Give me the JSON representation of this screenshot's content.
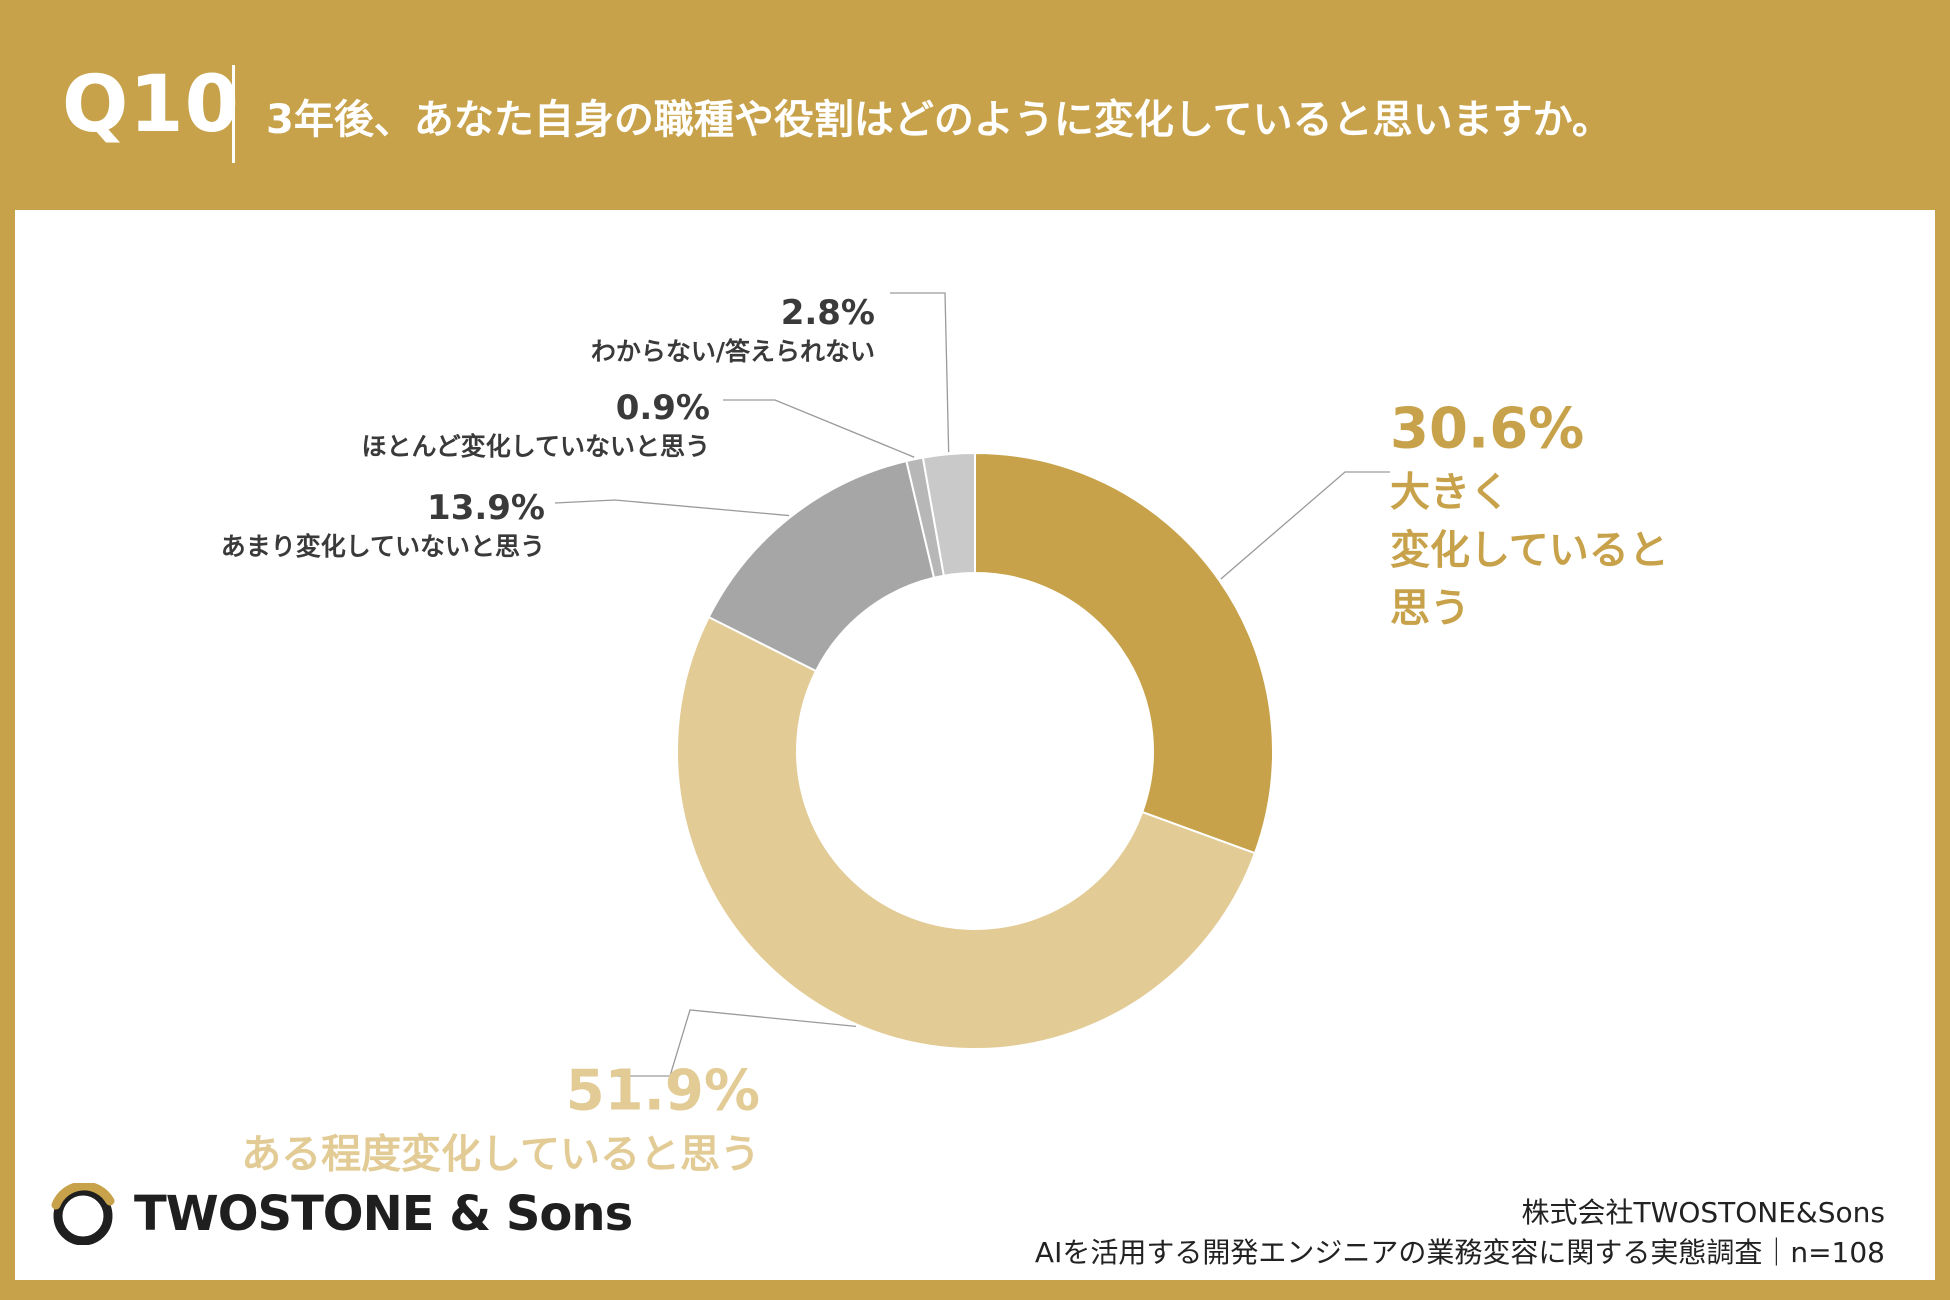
{
  "header": {
    "question_number": "Q10",
    "question_text": "3年後、あなた自身の職種や役割はどのように変化していると思いますか。"
  },
  "chart_data": {
    "type": "pie",
    "slices": [
      {
        "label": "大きく変化していると思う",
        "label_lines": [
          "大きく",
          "変化していると",
          "思う"
        ],
        "value": 30.6,
        "value_label": "30.6%",
        "color": "#c7a24a"
      },
      {
        "label": "ある程度変化していると思う",
        "label_lines": [
          "ある程度変化していると思う"
        ],
        "value": 51.9,
        "value_label": "51.9%",
        "color": "#e2cb95"
      },
      {
        "label": "あまり変化していないと思う",
        "label_lines": [
          "あまり変化していないと思う"
        ],
        "value": 13.9,
        "value_label": "13.9%",
        "color": "#a6a6a6"
      },
      {
        "label": "ほとんど変化していないと思う",
        "label_lines": [
          "ほとんど変化していないと思う"
        ],
        "value": 0.9,
        "value_label": "0.9%",
        "color": "#b7b7b7"
      },
      {
        "label": "わからない/答えられない",
        "label_lines": [
          "わからない/答えられない"
        ],
        "value": 2.8,
        "value_label": "2.8%",
        "color": "#c9c9c9"
      }
    ],
    "donut": true,
    "label_color_dark": "#3a3a3a"
  },
  "footer": {
    "logo_text": "TWOSTONE & Sons",
    "company": "株式会社TWOSTONE&Sons",
    "survey": "AIを活用する開発エンジニアの業務変容に関する実態調査｜n=108"
  },
  "colors": {
    "brand_gold": "#c7a24a",
    "light_gold": "#e2cb95",
    "panel": "#ffffff"
  }
}
